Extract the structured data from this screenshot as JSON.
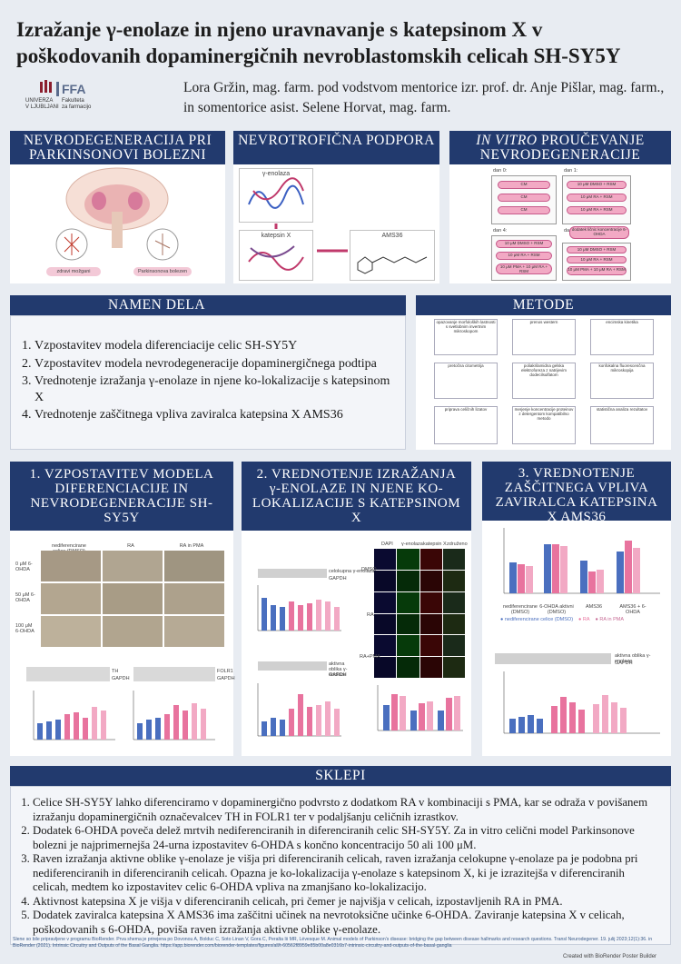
{
  "title": "Izražanje γ-enolaze in njeno uravnavanje s katepsinom X v poškodovanih dopaminergičnih nevroblastomskih celicah SH-SY5Y",
  "logo": {
    "line1": "UNIVERZA",
    "line2": "V LJUBLJANI",
    "ffa": "FFA",
    "sub1": "Fakulteta",
    "sub2": "za farmacijo"
  },
  "authors": "Lora Gržin, mag. farm. pod vodstvom mentorice izr. prof. dr. Anje Pišlar, mag. farm., in somentorice asist. Selene Horvat, mag. farm.",
  "sections": {
    "neuro": {
      "title": "NEVRODEGENERACIJA PRI PARKINSONOVI BOLEZNI",
      "label_left": "zdravi možgani",
      "label_right": "Parkinsonova bolezen"
    },
    "trophic": {
      "title": "NEVROTROFIČNA PODPORA",
      "enolase": "γ-enolaza",
      "cathepsin": "katepsin X",
      "ams": "AMS36"
    },
    "invitro": {
      "title_em": "IN VITRO",
      "title_rest": " PROUČEVANJE NEVRODEGENERACIJE",
      "day0": "dan 0:",
      "day1": "dan 1:",
      "day4": "dan 4:",
      "day7": "dan 7",
      "cm": "CM",
      "dmso": "10 μM DMSO + RSM",
      "ra": "10 μM RA + RSM",
      "ra_pma": "10 μM RA + RSM",
      "ohda": "dodatek ličnic koncentracije 6-OHDA",
      "p1": "10 μM PMA + 10 μM RA + RSM",
      "pmsf": "PMS/ PBS"
    },
    "aim": {
      "title": "NAMEN DELA",
      "items": [
        "Vzpostavitev modela diferenciacije celic SH-SY5Y",
        "Vzpostavitev modela nevrodegeneracije dopaminergičnega podtipa",
        "Vrednotenje izražanja γ-enolaze in njene ko-lokalizacije s katepsinom X",
        "Vrednotenje zaščitnega vpliva zaviralca katepsina X AMS36"
      ]
    },
    "methods": {
      "title": "METODE",
      "items": [
        "opazovanje morfoloških lastnosti s svetlobnim invertnim mikroskopom",
        "pretočna citometrija",
        "priprava celičnih lizatov",
        "prenos western",
        "poliakrilamidna gelska elektroforeza z natrijevim dodecilsulfatom",
        "merjenje koncentracije proteinov z detergentom kompatibilno metodo",
        "encimska kinetika",
        "konfokalna fluorescenčna mikroskopija",
        "statistična analiza rezultatov"
      ]
    },
    "s1": {
      "title": "1. VZPOSTAVITEV MODELA DIFERENCIACIJE IN NEVRODEGENERACIJE SH-SY5Y",
      "cols": [
        "nediferencirane celice (DMSO)",
        "RA",
        "RA in PMA"
      ],
      "rows": [
        "0 μM 6-OHDA",
        "50 μM 6-OHDA",
        "100 μM 6-OHDA"
      ],
      "blot1": "TH",
      "blot1b": "GAPDH",
      "blot2": "FOLR1",
      "blot2b": "GAPDH"
    },
    "s2": {
      "title": "2. VREDNOTENJE IZRAŽANJA γ-ENOLAZE IN NJENE KO- LOKALIZACIJE S KATEPSINOM X",
      "blot1": "celokupna γ-enolaza",
      "blot1b": "GAPDH",
      "blot2": "aktivna oblika γ-enolaze",
      "blot2b": "GAPDH",
      "conf_cols": [
        "DAPI",
        "γ-enolaza",
        "katepsin X",
        "združeno"
      ],
      "conf_rows": [
        "DMSO",
        "RA",
        "RA+PMA"
      ]
    },
    "s3": {
      "title": "3. VREDNOTENJE ZAŠČITNEGA VPLIVA ZAVIRALCA KATEPSINA X AMS36",
      "groups": [
        "nediferencirane (DMSO)",
        "6-OHDA aktivni (DMSO)",
        "AMS36",
        "AMS36 + 6-OHDA"
      ],
      "legend": [
        "● nediferencirane celice (DMSO)",
        "● RA",
        "● RA in PMA"
      ],
      "blot": "aktivna oblika γ-enolaze",
      "blotb": "GAPDH"
    },
    "concl": {
      "title": "SKLEPI",
      "items": [
        "Celice SH-SY5Y lahko diferenciramo v dopaminergično podvrsto z dodatkom RA v kombinaciji s PMA, kar se odraža v povišanem izražanju dopaminergičnih označevalcev TH in FOLR1 ter v podaljšanju celičnih izrastkov.",
        "Dodatek 6-OHDA poveča delež mrtvih nediferenciranih in diferenciranih celic SH-SY5Y. Za in vitro celični model Parkinsonove bolezni je najprimernejša 24-urna izpostavitev 6-OHDA s končno koncentracijo 50 ali 100 μM.",
        "Raven izražanja aktivne oblike γ-enolaze je višja pri diferenciranih celicah, raven izražanja celokupne γ-enolaze pa je podobna pri nediferenciranih in diferenciranih celicah. Opazna je ko-lokalizacija γ-enolaze s katepsinom X, ki je izrazitejša v diferenciranih celicah, medtem ko izpostavitev celic 6-OHDA vpliva na zmanjšano ko-lokalizacijo.",
        "Aktivnost katepsina X je višja v diferenciranih celicah, pri čemer je najvišja v celicah, izpostavljenih RA in PMA.",
        "Dodatek zaviralca katepsina X AMS36 ima zaščitni učinek na nevrotoksične učinke 6-OHDA. Zaviranje katepsina X v celicah, poškodovanih s 6-OHDA, poviša raven izražanja aktivne oblike γ-enolaze."
      ]
    },
    "footer": "Slene so bile pripravljene v programu BioRender. Prva shema je prirejena po Dovonou A, Bolduc C, Soto Linan V, Gora C, Peralta Iii MR, Lévesque M. Animal models of Parkinson's disease: bridging the gap between disease hallmarks and research questions. Transl Neurodegener. 19. julij 2023;12(1):36. in BioRender (2021). Intrinsic Circuitry and Outputs of the Basal Ganglia. https://app.biorender.com/biorender-templates/figures/all/t-60562f8959e85b00a8e0316b7-intrinsic-circuitry-and-outputs-of-the-basal-ganglia",
    "credit": "Created with BioRender Poster Builder"
  },
  "colors": {
    "header": "#223a6e",
    "pink": "#e8739e",
    "blue": "#4a6fbf"
  }
}
